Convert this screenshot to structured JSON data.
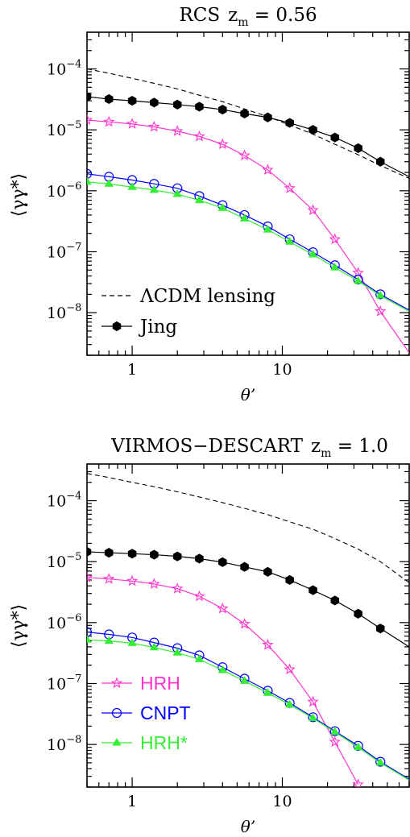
{
  "chart_data": [
    {
      "type": "line",
      "title": "RCS",
      "title_z": "z",
      "title_sub": "m",
      "title_value": " = 0.56",
      "ylabel": "⟨γγ*⟩",
      "xlabel": "θ’",
      "xscale": "log",
      "yscale": "log",
      "xlim": [
        0.5,
        70
      ],
      "ylim": [
        2e-09,
        0.0004
      ],
      "xticks": [
        {
          "v": 1,
          "label": "1"
        },
        {
          "v": 10,
          "label": "10"
        }
      ],
      "yticks": [
        {
          "v": 0.0001,
          "base": "10",
          "exp": "−4"
        },
        {
          "v": 1e-05,
          "base": "10",
          "exp": "−5"
        },
        {
          "v": 1e-06,
          "base": "10",
          "exp": "−6"
        },
        {
          "v": 1e-07,
          "base": "10",
          "exp": "−7"
        },
        {
          "v": 1e-08,
          "base": "10",
          "exp": "−8"
        }
      ],
      "legend_position": "bottom-left",
      "legend": [
        {
          "label": "ΛCDM lensing",
          "series": "lensing",
          "color": "#000000"
        },
        {
          "label": "Jing",
          "series": "jing",
          "color": "#000000"
        }
      ],
      "series": [
        {
          "name": "ΛCDM lensing",
          "key": "lensing",
          "style": "dashed",
          "marker": "none",
          "color": "#000000",
          "x": [
            0.5,
            0.7,
            1,
            1.4,
            2,
            2.8,
            4,
            5.6,
            8,
            11.2,
            16,
            22.4,
            32,
            45,
            70
          ],
          "y": [
            0.0001,
            8.5e-05,
            7e-05,
            5.8e-05,
            4.7e-05,
            3.7e-05,
            2.9e-05,
            2.2e-05,
            1.65e-05,
            1.2e-05,
            8.5e-06,
            5.8e-06,
            3.9e-06,
            2.6e-06,
            1.6e-06
          ]
        },
        {
          "name": "Jing",
          "key": "jing",
          "style": "solid",
          "marker": "hexagon",
          "color": "#000000",
          "x": [
            0.5,
            0.7,
            1,
            1.4,
            2,
            2.8,
            4,
            5.6,
            8,
            11.2,
            16,
            22.4,
            32,
            45,
            70
          ],
          "y": [
            3.5e-05,
            3.2e-05,
            3e-05,
            2.8e-05,
            2.6e-05,
            2.4e-05,
            2.15e-05,
            1.85e-05,
            1.6e-05,
            1.3e-05,
            1e-05,
            7.5e-06,
            5e-06,
            3e-06,
            1.7e-06
          ]
        },
        {
          "name": "HRH",
          "key": "hrh",
          "style": "solid",
          "marker": "star",
          "color": "#ff33cc",
          "x": [
            0.5,
            0.7,
            1,
            1.4,
            2,
            2.8,
            4,
            5.6,
            8,
            11.2,
            16,
            22.4,
            32,
            45,
            70
          ],
          "y": [
            1.45e-05,
            1.35e-05,
            1.25e-05,
            1.12e-05,
            9.5e-06,
            7.8e-06,
            5.8e-06,
            3.8e-06,
            2.2e-06,
            1.1e-06,
            4.8e-07,
            1.6e-07,
            4.5e-08,
            1.05e-08,
            2.2e-09
          ]
        },
        {
          "name": "CNPT",
          "key": "cnpt",
          "style": "solid",
          "marker": "circle",
          "color": "#0000ff",
          "x": [
            0.5,
            0.7,
            1,
            1.4,
            2,
            2.8,
            4,
            5.6,
            8,
            11.2,
            16,
            22.4,
            32,
            45,
            70
          ],
          "y": [
            1.9e-06,
            1.7e-06,
            1.5e-06,
            1.3e-06,
            1.1e-06,
            8.2e-07,
            5.8e-07,
            4e-07,
            2.6e-07,
            1.6e-07,
            9.8e-08,
            6e-08,
            3.5e-08,
            2e-08,
            1.1e-08
          ]
        },
        {
          "name": "HRH*",
          "key": "hrhstar",
          "style": "solid",
          "marker": "triangle",
          "color": "#33ee33",
          "x": [
            0.5,
            0.7,
            1,
            1.4,
            2,
            2.8,
            4,
            5.6,
            8,
            11.2,
            16,
            22.4,
            32,
            45,
            70
          ],
          "y": [
            1.4e-06,
            1.3e-06,
            1.15e-06,
            1.03e-06,
            8.8e-07,
            7e-07,
            5.2e-07,
            3.5e-07,
            2.3e-07,
            1.45e-07,
            9e-08,
            5.5e-08,
            3.3e-08,
            1.9e-08,
            1.05e-08
          ]
        }
      ]
    },
    {
      "type": "line",
      "title": "VIRMOS−DESCART",
      "title_z": "z",
      "title_sub": "m",
      "title_value": " = 1.0",
      "ylabel": "⟨γγ*⟩",
      "xlabel": "θ’",
      "xscale": "log",
      "yscale": "log",
      "xlim": [
        0.5,
        70
      ],
      "ylim": [
        2e-09,
        0.0004
      ],
      "xticks": [
        {
          "v": 1,
          "label": "1"
        },
        {
          "v": 10,
          "label": "10"
        }
      ],
      "yticks": [
        {
          "v": 0.0001,
          "base": "10",
          "exp": "−4"
        },
        {
          "v": 1e-05,
          "base": "10",
          "exp": "−5"
        },
        {
          "v": 1e-06,
          "base": "10",
          "exp": "−6"
        },
        {
          "v": 1e-07,
          "base": "10",
          "exp": "−7"
        },
        {
          "v": 1e-08,
          "base": "10",
          "exp": "−8"
        }
      ],
      "legend_position": "bottom-left",
      "legend": [
        {
          "label": "HRH",
          "series": "hrh",
          "color": "#ff33cc"
        },
        {
          "label": "CNPT",
          "series": "cnpt",
          "color": "#0000ff"
        },
        {
          "label": "HRH*",
          "series": "hrhstar",
          "color": "#33ee33"
        }
      ],
      "series": [
        {
          "name": "ΛCDM lensing",
          "key": "lensing",
          "style": "dashed",
          "marker": "none",
          "color": "#000000",
          "x": [
            0.5,
            0.7,
            1,
            1.4,
            2,
            2.8,
            4,
            5.6,
            8,
            11.2,
            16,
            22.4,
            32,
            45,
            70
          ],
          "y": [
            0.00028,
            0.00024,
            0.0002,
            0.00017,
            0.00014,
            0.000115,
            9.3e-05,
            7.5e-05,
            5.9e-05,
            4.5e-05,
            3.4e-05,
            2.4e-05,
            1.6e-05,
            1e-05,
            4.5e-06
          ]
        },
        {
          "name": "Jing",
          "key": "jing",
          "style": "solid",
          "marker": "hexagon",
          "color": "#000000",
          "x": [
            0.5,
            0.7,
            1,
            1.4,
            2,
            2.8,
            4,
            5.6,
            8,
            11.2,
            16,
            22.4,
            32,
            45,
            70
          ],
          "y": [
            1.45e-05,
            1.4e-05,
            1.35e-05,
            1.3e-05,
            1.22e-05,
            1.12e-05,
            9.8e-06,
            8.2e-06,
            6.8e-06,
            5e-06,
            3.4e-06,
            2.3e-06,
            1.4e-06,
            8e-07,
            4e-07
          ]
        },
        {
          "name": "HRH",
          "key": "hrh",
          "style": "solid",
          "marker": "star",
          "color": "#ff33cc",
          "x": [
            0.5,
            0.7,
            1,
            1.4,
            2,
            2.8,
            4,
            5.6,
            8,
            11.2,
            16,
            22.4,
            32
          ],
          "y": [
            5.5e-06,
            5.2e-06,
            4.8e-06,
            4.3e-06,
            3.6e-06,
            2.7e-06,
            1.7e-06,
            9.5e-07,
            4.3e-07,
            1.7e-07,
            5e-08,
            1.1e-08,
            2.2e-09
          ]
        },
        {
          "name": "CNPT",
          "key": "cnpt",
          "style": "solid",
          "marker": "circle",
          "color": "#0000ff",
          "x": [
            0.5,
            0.7,
            1,
            1.4,
            2,
            2.8,
            4,
            5.6,
            8,
            11.2,
            16,
            22.4,
            32,
            45,
            70
          ],
          "y": [
            7e-07,
            6.4e-07,
            5.7e-07,
            4.7e-07,
            3.8e-07,
            2.9e-07,
            1.85e-07,
            1.2e-07,
            7.6e-08,
            4.8e-08,
            2.8e-08,
            1.65e-08,
            9.5e-09,
            5.2e-09,
            2.7e-09
          ]
        },
        {
          "name": "HRH*",
          "key": "hrhstar",
          "style": "solid",
          "marker": "triangle",
          "color": "#33ee33",
          "x": [
            0.5,
            0.7,
            1,
            1.4,
            2,
            2.8,
            4,
            5.6,
            8,
            11.2,
            16,
            22.4,
            32,
            45,
            70
          ],
          "y": [
            5.2e-07,
            5e-07,
            4.6e-07,
            3.9e-07,
            3.2e-07,
            2.5e-07,
            1.65e-07,
            1.1e-07,
            7e-08,
            4.5e-08,
            2.7e-08,
            1.6e-08,
            9e-09,
            5e-09,
            2.6e-09
          ]
        }
      ]
    }
  ]
}
